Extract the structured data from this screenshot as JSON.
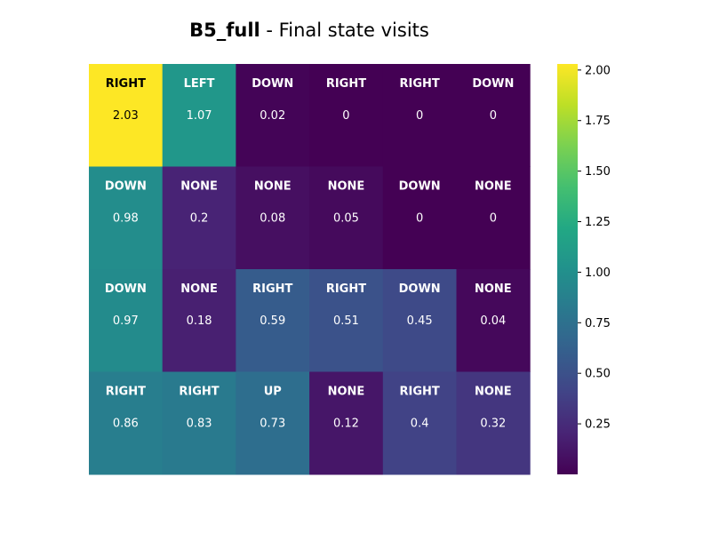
{
  "chart_data": {
    "type": "heatmap",
    "title_bold": "B5_full",
    "title_rest": " - Final state visits",
    "rows": 4,
    "cols": 6,
    "actions": [
      [
        "RIGHT",
        "LEFT",
        "DOWN",
        "RIGHT",
        "RIGHT",
        "DOWN"
      ],
      [
        "DOWN",
        "NONE",
        "NONE",
        "NONE",
        "DOWN",
        "NONE"
      ],
      [
        "DOWN",
        "NONE",
        "RIGHT",
        "RIGHT",
        "DOWN",
        "NONE"
      ],
      [
        "RIGHT",
        "RIGHT",
        "UP",
        "NONE",
        "RIGHT",
        "NONE"
      ]
    ],
    "values": [
      [
        2.03,
        1.07,
        0.02,
        0,
        0,
        0
      ],
      [
        0.98,
        0.2,
        0.08,
        0.05,
        0,
        0
      ],
      [
        0.97,
        0.18,
        0.59,
        0.51,
        0.45,
        0.04
      ],
      [
        0.86,
        0.83,
        0.73,
        0.12,
        0.4,
        0.32
      ]
    ],
    "colormap": "viridis",
    "vmin": 0,
    "vmax": 2.03,
    "colorbar_ticks": [
      "0.25",
      "0.50",
      "0.75",
      "1.00",
      "1.25",
      "1.50",
      "1.75",
      "2.00"
    ],
    "colorbar_tick_values": [
      0.25,
      0.5,
      0.75,
      1.0,
      1.25,
      1.5,
      1.75,
      2.0
    ]
  }
}
